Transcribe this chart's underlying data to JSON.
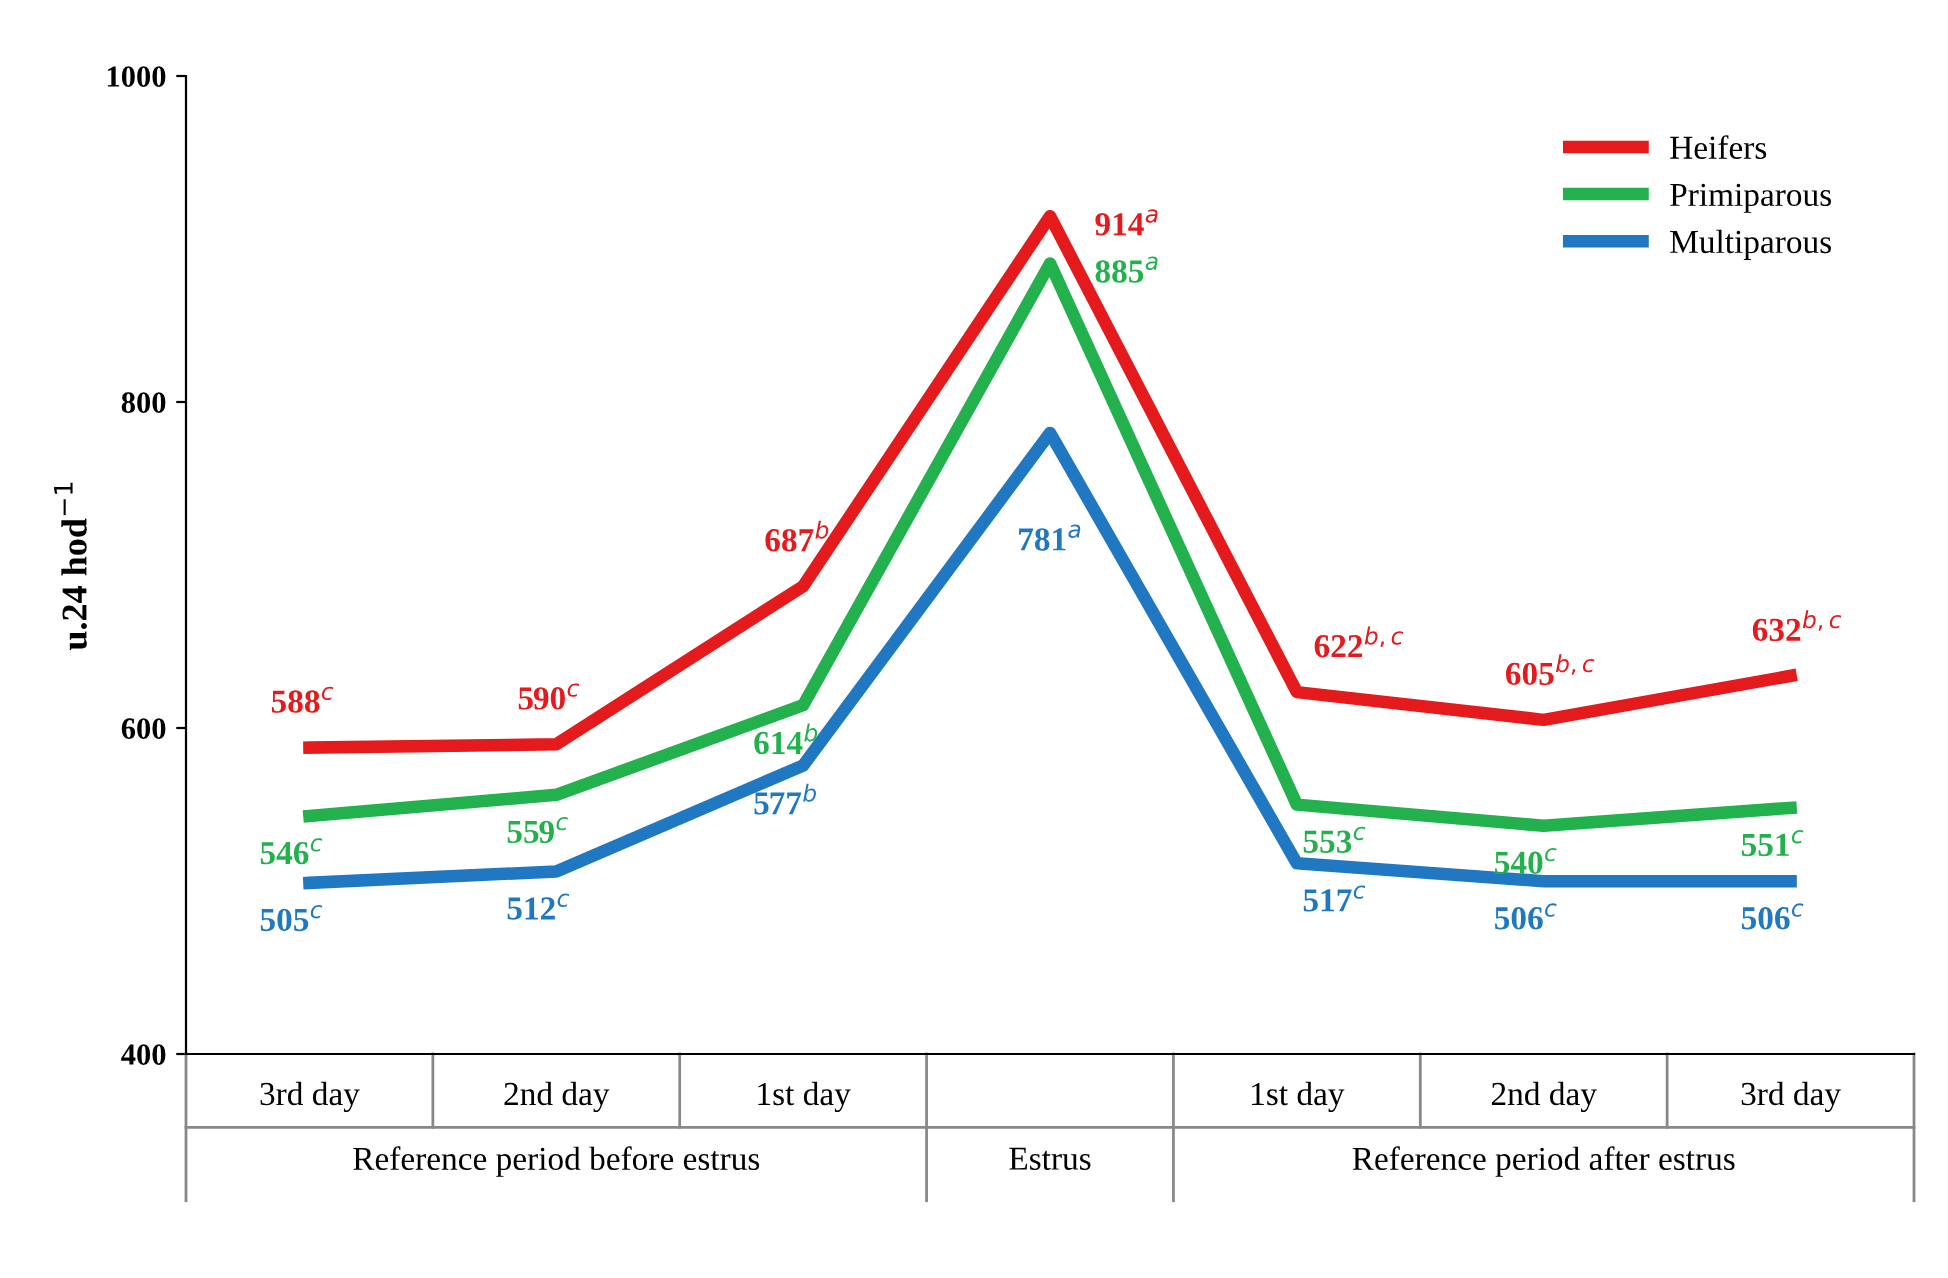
{
  "chart_data": {
    "type": "line",
    "ylabel": "u.24 hod$^{−1}$",
    "categories": [
      "3rd day",
      "2nd day",
      "1st day",
      null,
      "1st day",
      "2nd day",
      "3rd day"
    ],
    "series": [
      {
        "name": "Heifers",
        "color": "#e41a1c",
        "values": [
          588,
          590,
          687,
          914,
          622,
          605,
          632
        ],
        "value_labels": [
          "588$^{c}$",
          "590$^{c}$",
          "687$^{b}$",
          "914$^{a}$",
          "622$^{b,c}$",
          "605$^{b,c}$",
          "632$^{b,c}$"
        ]
      },
      {
        "name": "Primiparous",
        "color": "#22b14c",
        "values": [
          546,
          559,
          614,
          885,
          553,
          540,
          551
        ],
        "value_labels": [
          "546$^{c}$",
          "559$^{c}$",
          "614$^{b}$",
          "885$^{a}$",
          "553$^{c}$",
          "540$^{c}$",
          "551$^{c}$"
        ]
      },
      {
        "name": "Multiparous",
        "color": "#1f78c1",
        "values": [
          505,
          512,
          577,
          781,
          517,
          506,
          506
        ],
        "value_labels": [
          "505$^{c}$",
          "512$^{c}$",
          "577$^{b}$",
          "781$^{a}$",
          "517$^{c}$",
          "506$^{c}$",
          "506$^{c}$"
        ]
      }
    ],
    "annotations": [
      "Reference period before estrus",
      "Estrus",
      "Reference period after estrus"
    ],
    "ylim": [
      400,
      1000
    ],
    "yticks": [
      400,
      600,
      800,
      1000
    ],
    "grid": false,
    "legend": "top right",
    "marker": "none",
    "line_style": "solid"
  }
}
